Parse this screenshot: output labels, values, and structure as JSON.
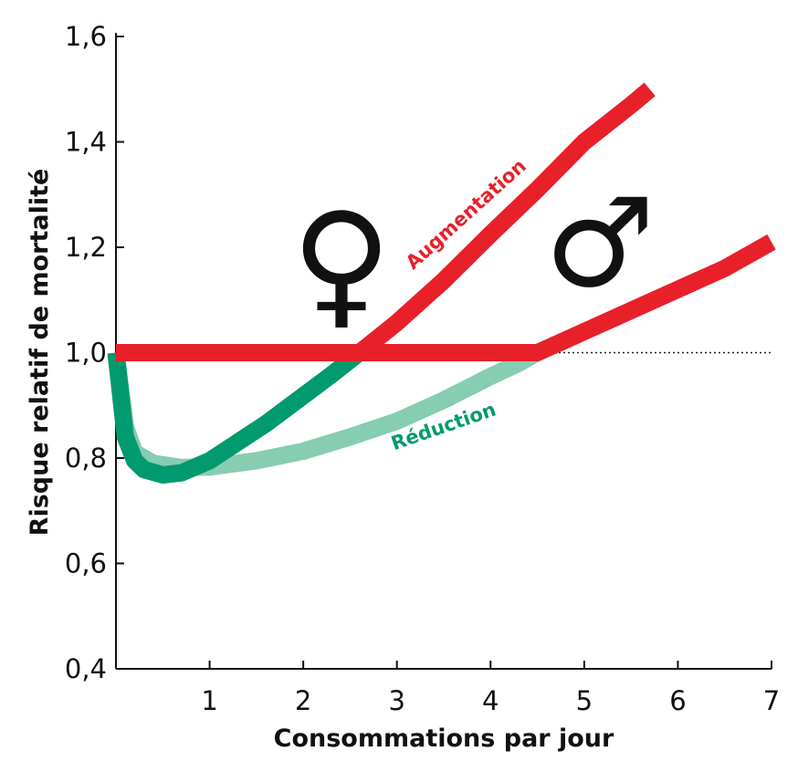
{
  "chart_data": {
    "type": "line",
    "xlabel": "Consommations par jour",
    "ylabel": "Risque relatif de mortalité",
    "xlim": [
      0,
      7
    ],
    "ylim": [
      0.4,
      1.6
    ],
    "x_ticks": [
      "1",
      "2",
      "3",
      "4",
      "5",
      "6",
      "7"
    ],
    "y_ticks": [
      "0,4",
      "0,6",
      "0,8",
      "1,0",
      "1,2",
      "1,4",
      "1,6"
    ],
    "reference_line": {
      "y": 1.0,
      "style": "dotted"
    },
    "annotations": {
      "increase": "Augmentation",
      "decrease": "Réduction"
    },
    "symbols": {
      "female": "♀",
      "male": "♂"
    },
    "colors": {
      "increase": "#e8202a",
      "female_reduction": "#009a6e",
      "male_reduction": "#86cdb2",
      "axis": "#111111"
    },
    "series": [
      {
        "symbol": "♀",
        "x": [
          0.0,
          0.1,
          0.2,
          0.3,
          0.5,
          0.7,
          1.0,
          1.3,
          1.6,
          2.0,
          2.3,
          2.6,
          3.0,
          3.5,
          4.0,
          4.5,
          5.0,
          5.5,
          5.7
        ],
        "y": [
          1.0,
          0.84,
          0.795,
          0.778,
          0.768,
          0.772,
          0.795,
          0.83,
          0.865,
          0.918,
          0.958,
          1.0,
          1.057,
          1.137,
          1.225,
          1.31,
          1.4,
          1.47,
          1.5
        ]
      },
      {
        "symbol": "♂",
        "x": [
          0.0,
          0.1,
          0.2,
          0.4,
          0.7,
          1.0,
          1.5,
          2.0,
          2.5,
          3.0,
          3.5,
          4.0,
          4.3,
          4.5,
          5.0,
          5.5,
          6.0,
          6.5,
          7.0
        ],
        "y": [
          1.0,
          0.86,
          0.81,
          0.79,
          0.782,
          0.783,
          0.795,
          0.813,
          0.84,
          0.87,
          0.91,
          0.955,
          0.98,
          1.0,
          1.04,
          1.08,
          1.12,
          1.16,
          1.21
        ]
      }
    ]
  }
}
